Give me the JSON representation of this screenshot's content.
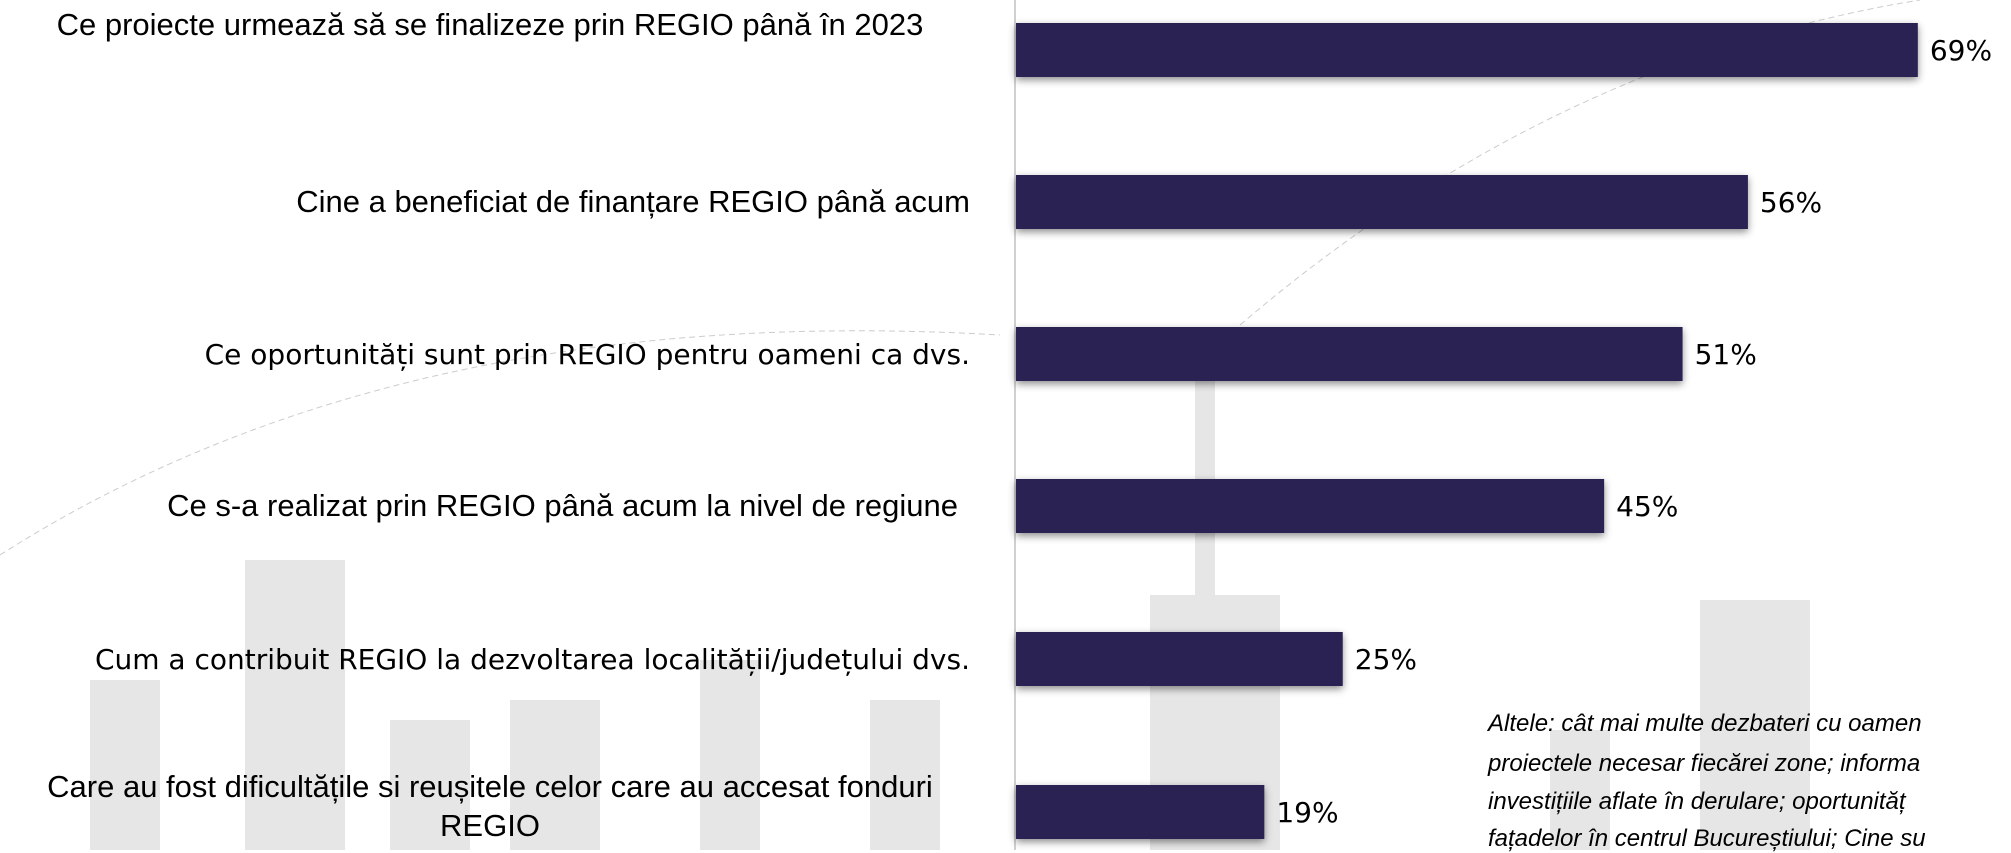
{
  "chart_data": {
    "type": "bar",
    "orientation": "horizontal",
    "color": "#2b2452",
    "categories": [
      "Ce proiecte urmează să se finalizeze prin REGIO până în 2023",
      "Cine a beneficiat de finanțare REGIO până acum",
      "Ce oportunități sunt prin REGIO pentru oameni ca dvs.",
      "Ce s-a realizat prin REGIO până acum la nivel de regiune",
      "Cum a contribuit REGIO la dezvoltarea localității/județului dvs.",
      "Care au fost dificultățile si reușitele celor care au accesat fonduri REGIO"
    ],
    "values": [
      69,
      56,
      51,
      45,
      25,
      19
    ],
    "value_labels": [
      "69%",
      "56%",
      "51%",
      "45%",
      "25%",
      "19%"
    ],
    "note": [
      "Altele: cât mai multe dezbateri cu oamen",
      "proiectele necesar fiecărei zone; informa",
      "investițiile aflate în derulare; oportunităț",
      "fațadelor în centrul Bucureștiului; Cine su"
    ]
  }
}
